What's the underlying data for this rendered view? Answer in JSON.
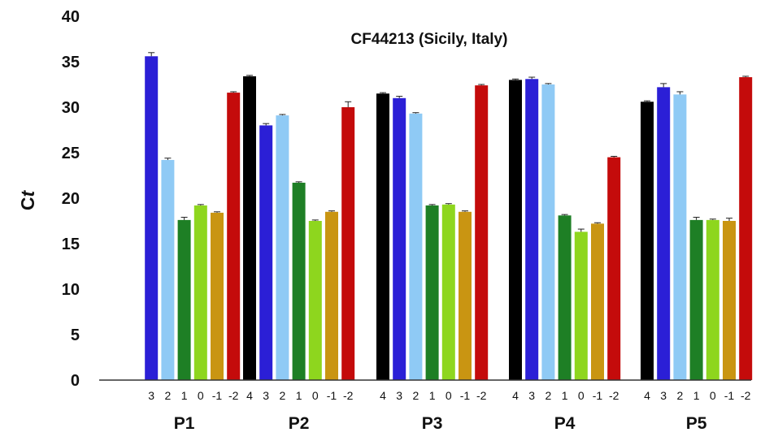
{
  "chart_data": {
    "type": "bar",
    "title": "CF44213 (Sicily, Italy)",
    "ylabel": "Ct",
    "ylabel_parts": [
      "C",
      "t"
    ],
    "ylim": [
      0,
      40
    ],
    "yticks": [
      0,
      5,
      10,
      15,
      20,
      25,
      30,
      35,
      40
    ],
    "grid": false,
    "legend": "none",
    "bar_colors": {
      "4": "#000000",
      "3": "#2b1fd6",
      "2": "#8fcaf5",
      "1": "#1e7f25",
      "0": "#8ed61e",
      "-1": "#c99512",
      "-2": "#c40b0b"
    },
    "groups": [
      {
        "name": "P1",
        "bars": [
          {
            "label": "3",
            "value": 35.6,
            "err": 0.4
          },
          {
            "label": "2",
            "value": 24.2,
            "err": 0.2
          },
          {
            "label": "1",
            "value": 17.6,
            "err": 0.3
          },
          {
            "label": "0",
            "value": 19.2,
            "err": 0.1
          },
          {
            "label": "-1",
            "value": 18.4,
            "err": 0.1
          },
          {
            "label": "-2",
            "value": 31.6,
            "err": 0.1
          }
        ]
      },
      {
        "name": "P2",
        "bars": [
          {
            "label": "4",
            "value": 33.4,
            "err": 0.1
          },
          {
            "label": "3",
            "value": 28.0,
            "err": 0.2
          },
          {
            "label": "2",
            "value": 29.1,
            "err": 0.1
          },
          {
            "label": "1",
            "value": 21.7,
            "err": 0.1
          },
          {
            "label": "0",
            "value": 17.5,
            "err": 0.1
          },
          {
            "label": "-1",
            "value": 18.5,
            "err": 0.1
          },
          {
            "label": "-2",
            "value": 30.0,
            "err": 0.6
          }
        ]
      },
      {
        "name": "P3",
        "bars": [
          {
            "label": "4",
            "value": 31.5,
            "err": 0.1
          },
          {
            "label": "3",
            "value": 31.0,
            "err": 0.2
          },
          {
            "label": "2",
            "value": 29.3,
            "err": 0.1
          },
          {
            "label": "1",
            "value": 19.2,
            "err": 0.1
          },
          {
            "label": "0",
            "value": 19.3,
            "err": 0.1
          },
          {
            "label": "-1",
            "value": 18.5,
            "err": 0.1
          },
          {
            "label": "-2",
            "value": 32.4,
            "err": 0.1
          }
        ]
      },
      {
        "name": "P4",
        "bars": [
          {
            "label": "4",
            "value": 33.0,
            "err": 0.1
          },
          {
            "label": "3",
            "value": 33.1,
            "err": 0.2
          },
          {
            "label": "2",
            "value": 32.5,
            "err": 0.1
          },
          {
            "label": "1",
            "value": 18.1,
            "err": 0.1
          },
          {
            "label": "0",
            "value": 16.3,
            "err": 0.3
          },
          {
            "label": "-1",
            "value": 17.2,
            "err": 0.1
          },
          {
            "label": "-2",
            "value": 24.5,
            "err": 0.1
          }
        ]
      },
      {
        "name": "P5",
        "bars": [
          {
            "label": "4",
            "value": 30.6,
            "err": 0.1
          },
          {
            "label": "3",
            "value": 32.2,
            "err": 0.4
          },
          {
            "label": "2",
            "value": 31.4,
            "err": 0.3
          },
          {
            "label": "1",
            "value": 17.6,
            "err": 0.3
          },
          {
            "label": "0",
            "value": 17.6,
            "err": 0.1
          },
          {
            "label": "-1",
            "value": 17.5,
            "err": 0.3
          },
          {
            "label": "-2",
            "value": 33.3,
            "err": 0.1
          }
        ]
      }
    ]
  }
}
